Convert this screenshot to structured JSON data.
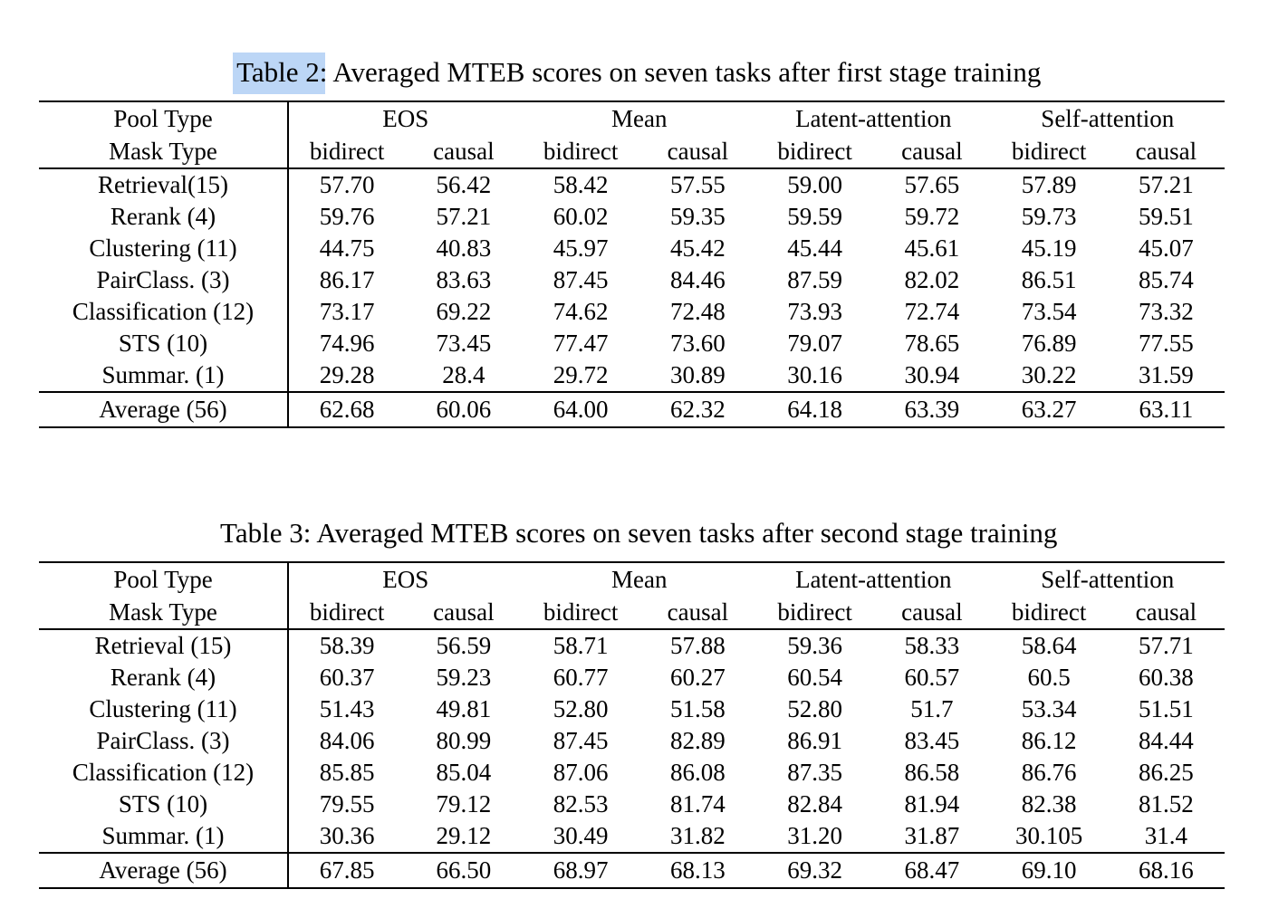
{
  "page": {
    "background_color": "#ffffff",
    "text_color": "#000000",
    "selection_highlight_color": "#bcd6f6"
  },
  "tables": [
    {
      "caption": {
        "label": "Table 2",
        "text": ": Averaged MTEB scores on seven tasks after first stage training",
        "label_highlighted": true
      },
      "header": {
        "row1_label": "Pool Type",
        "row2_label": "Mask Type",
        "groups": [
          "EOS",
          "Mean",
          "Latent-attention",
          "Self-attention"
        ],
        "subcolumns": [
          "bidirect",
          "causal",
          "bidirect",
          "causal",
          "bidirect",
          "causal",
          "bidirect",
          "causal"
        ]
      },
      "rows": [
        {
          "label": "Retrieval(15)",
          "values": [
            "57.70",
            "56.42",
            "58.42",
            "57.55",
            "59.00",
            "57.65",
            "57.89",
            "57.21"
          ],
          "bold_indices": [
            4
          ],
          "bold_label": false,
          "is_footer": false
        },
        {
          "label": "Rerank (4)",
          "values": [
            "59.76",
            "57.21",
            "60.02",
            "59.35",
            "59.59",
            "59.72",
            "59.73",
            "59.51"
          ],
          "bold_indices": [],
          "bold_label": false,
          "is_footer": false
        },
        {
          "label": "Clustering (11)",
          "values": [
            "44.75",
            "40.83",
            "45.97",
            "45.42",
            "45.44",
            "45.61",
            "45.19",
            "45.07"
          ],
          "bold_indices": [],
          "bold_label": false,
          "is_footer": false
        },
        {
          "label": "PairClass. (3)",
          "values": [
            "86.17",
            "83.63",
            "87.45",
            "84.46",
            "87.59",
            "82.02",
            "86.51",
            "85.74"
          ],
          "bold_indices": [],
          "bold_label": false,
          "is_footer": false
        },
        {
          "label": "Classification (12)",
          "values": [
            "73.17",
            "69.22",
            "74.62",
            "72.48",
            "73.93",
            "72.74",
            "73.54",
            "73.32"
          ],
          "bold_indices": [],
          "bold_label": false,
          "is_footer": false
        },
        {
          "label": "STS (10)",
          "values": [
            "74.96",
            "73.45",
            "77.47",
            "73.60",
            "79.07",
            "78.65",
            "76.89",
            "77.55"
          ],
          "bold_indices": [],
          "bold_label": false,
          "is_footer": false
        },
        {
          "label": "Summar. (1)",
          "values": [
            "29.28",
            "28.4",
            "29.72",
            "30.89",
            "30.16",
            "30.94",
            "30.22",
            "31.59"
          ],
          "bold_indices": [],
          "bold_label": false,
          "is_footer": false
        },
        {
          "label": "Average (56)",
          "values": [
            "62.68",
            "60.06",
            "64.00",
            "62.32",
            "64.18",
            "63.39",
            "63.27",
            "63.11"
          ],
          "bold_indices": [
            4
          ],
          "bold_label": true,
          "is_footer": true
        }
      ]
    },
    {
      "caption": {
        "label": "Table 3",
        "text": ": Averaged MTEB scores on seven tasks after second stage training",
        "label_highlighted": false
      },
      "header": {
        "row1_label": "Pool Type",
        "row2_label": "Mask Type",
        "groups": [
          "EOS",
          "Mean",
          "Latent-attention",
          "Self-attention"
        ],
        "subcolumns": [
          "bidirect",
          "causal",
          "bidirect",
          "causal",
          "bidirect",
          "causal",
          "bidirect",
          "causal"
        ]
      },
      "rows": [
        {
          "label": "Retrieval (15)",
          "values": [
            "58.39",
            "56.59",
            "58.71",
            "57.88",
            "59.36",
            "58.33",
            "58.64",
            "57.71"
          ],
          "bold_indices": [
            4
          ],
          "bold_label": false,
          "is_footer": false
        },
        {
          "label": "Rerank (4)",
          "values": [
            "60.37",
            "59.23",
            "60.77",
            "60.27",
            "60.54",
            "60.57",
            "60.5",
            "60.38"
          ],
          "bold_indices": [],
          "bold_label": false,
          "is_footer": false
        },
        {
          "label": "Clustering (11)",
          "values": [
            "51.43",
            "49.81",
            "52.80",
            "51.58",
            "52.80",
            "51.7",
            "53.34",
            "51.51"
          ],
          "bold_indices": [],
          "bold_label": false,
          "is_footer": false
        },
        {
          "label": "PairClass. (3)",
          "values": [
            "84.06",
            "80.99",
            "87.45",
            "82.89",
            "86.91",
            "83.45",
            "86.12",
            "84.44"
          ],
          "bold_indices": [],
          "bold_label": false,
          "is_footer": false
        },
        {
          "label": "Classification (12)",
          "values": [
            "85.85",
            "85.04",
            "87.06",
            "86.08",
            "87.35",
            "86.58",
            "86.76",
            "86.25"
          ],
          "bold_indices": [],
          "bold_label": false,
          "is_footer": false
        },
        {
          "label": "STS (10)",
          "values": [
            "79.55",
            "79.12",
            "82.53",
            "81.74",
            "82.84",
            "81.94",
            "82.38",
            "81.52"
          ],
          "bold_indices": [],
          "bold_label": false,
          "is_footer": false
        },
        {
          "label": "Summar. (1)",
          "values": [
            "30.36",
            "29.12",
            "30.49",
            "31.82",
            "31.20",
            "31.87",
            "30.105",
            "31.4"
          ],
          "bold_indices": [],
          "bold_label": false,
          "is_footer": false
        },
        {
          "label": "Average (56)",
          "values": [
            "67.85",
            "66.50",
            "68.97",
            "68.13",
            "69.32",
            "68.47",
            "69.10",
            "68.16"
          ],
          "bold_indices": [
            4
          ],
          "bold_label": true,
          "is_footer": true
        }
      ]
    }
  ]
}
